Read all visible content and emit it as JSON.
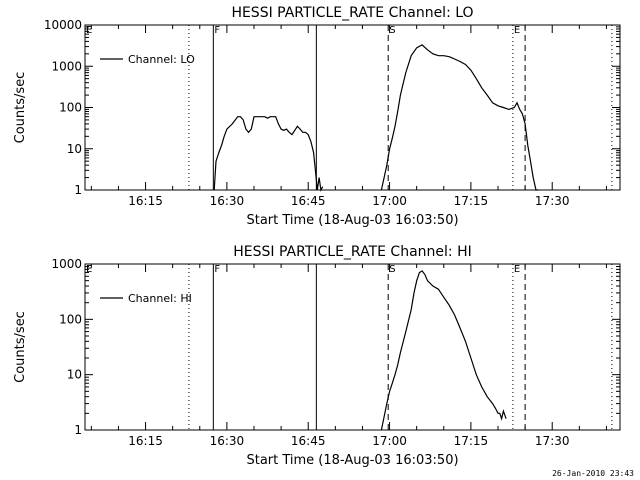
{
  "chart_data": [
    {
      "type": "line",
      "title": "HESSI PARTICLE_RATE Channel: LO",
      "xlabel": "Start Time (18-Aug-03 16:03:50)",
      "ylabel": "Counts/sec",
      "yscale": "log",
      "ylim": [
        1,
        10000
      ],
      "xlim": [
        "16:03:50",
        "17:42:30"
      ],
      "xticks": [
        "16:15",
        "16:30",
        "16:45",
        "17:00",
        "17:15",
        "17:30"
      ],
      "yticks": [
        "1",
        "10",
        "100",
        "1000",
        "10000"
      ],
      "grid": false,
      "legend": {
        "position": "top-left",
        "entries": [
          "Channel: LO"
        ]
      },
      "markers": [
        {
          "time": "16:23:00",
          "style": "dotted",
          "label": ""
        },
        {
          "time": "16:27:30",
          "style": "solid",
          "label": "F"
        },
        {
          "time": "16:46:30",
          "style": "solid",
          "label": ""
        },
        {
          "time": "16:59:45",
          "style": "dashed",
          "label": "S"
        },
        {
          "time": "17:22:45",
          "style": "dotted",
          "label": "E"
        },
        {
          "time": "17:25:00",
          "style": "dashed",
          "label": ""
        },
        {
          "time": "17:41:00",
          "style": "dotted",
          "label": ""
        }
      ],
      "corner_label": "E",
      "series": [
        {
          "name": "Channel: LO",
          "segments": [
            {
              "x": [
                "16:27:40",
                "16:28:00",
                "16:28:30",
                "16:29:00",
                "16:29:30",
                "16:30:00",
                "16:31:00",
                "16:32:00",
                "16:32:30",
                "16:33:00",
                "16:33:30",
                "16:34:00",
                "16:34:30",
                "16:35:00",
                "16:36:00",
                "16:37:00",
                "16:37:30",
                "16:38:00",
                "16:38:30",
                "16:39:00",
                "16:39:30",
                "16:40:00",
                "16:40:30",
                "16:41:00",
                "16:41:30",
                "16:42:00",
                "16:43:00",
                "16:43:30",
                "16:44:00",
                "16:44:30",
                "16:45:00",
                "16:45:30",
                "16:46:00",
                "16:46:20",
                "16:46:40",
                "16:47:00",
                "16:47:20",
                "16:47:40"
              ],
              "y": [
                1,
                5,
                8,
                12,
                20,
                30,
                40,
                60,
                60,
                50,
                30,
                25,
                30,
                60,
                60,
                60,
                55,
                60,
                60,
                60,
                40,
                30,
                28,
                30,
                25,
                22,
                35,
                30,
                25,
                25,
                22,
                15,
                8,
                3,
                1,
                2,
                1,
                1.2
              ]
            },
            {
              "x": [
                "16:58:30",
                "16:59:30",
                "17:00:00",
                "17:00:30",
                "17:01:00",
                "17:01:30",
                "17:02:00",
                "17:03:00",
                "17:04:00",
                "17:05:00",
                "17:06:00",
                "17:07:00",
                "17:08:00",
                "17:09:00",
                "17:10:00",
                "17:11:00",
                "17:12:00",
                "17:13:00",
                "17:14:00",
                "17:15:00",
                "17:16:00",
                "17:17:00",
                "17:18:00",
                "17:19:00",
                "17:20:00",
                "17:21:00",
                "17:22:00",
                "17:23:00",
                "17:23:30",
                "17:24:00",
                "17:24:30",
                "17:25:00",
                "17:25:30",
                "17:26:00",
                "17:26:30",
                "17:27:00",
                "17:27:30"
              ],
              "y": [
                1,
                4,
                10,
                18,
                35,
                80,
                200,
                700,
                1800,
                2800,
                3300,
                2500,
                2000,
                1800,
                1800,
                1700,
                1500,
                1300,
                1100,
                800,
                500,
                300,
                200,
                130,
                110,
                100,
                90,
                100,
                130,
                90,
                70,
                40,
                12,
                5,
                2,
                1,
                1
              ]
            }
          ]
        }
      ]
    },
    {
      "type": "line",
      "title": "HESSI PARTICLE_RATE Channel: HI",
      "xlabel": "Start Time (18-Aug-03 16:03:50)",
      "ylabel": "Counts/sec",
      "yscale": "log",
      "ylim": [
        1,
        1000
      ],
      "xlim": [
        "16:03:50",
        "17:42:30"
      ],
      "xticks": [
        "16:15",
        "16:30",
        "16:45",
        "17:00",
        "17:15",
        "17:30"
      ],
      "yticks": [
        "1",
        "10",
        "100",
        "1000"
      ],
      "grid": false,
      "legend": {
        "position": "top-left",
        "entries": [
          "Channel: HI"
        ]
      },
      "markers": [
        {
          "time": "16:23:00",
          "style": "dotted",
          "label": ""
        },
        {
          "time": "16:27:30",
          "style": "solid",
          "label": "F"
        },
        {
          "time": "16:46:30",
          "style": "solid",
          "label": ""
        },
        {
          "time": "16:59:45",
          "style": "dashed",
          "label": "S"
        },
        {
          "time": "17:22:45",
          "style": "dotted",
          "label": "E"
        },
        {
          "time": "17:25:00",
          "style": "dashed",
          "label": ""
        },
        {
          "time": "17:41:00",
          "style": "dotted",
          "label": ""
        }
      ],
      "corner_label": "E",
      "series": [
        {
          "name": "Channel: HI",
          "segments": [
            {
              "x": [
                "16:58:30",
                "16:59:30",
                "17:00:00",
                "17:00:30",
                "17:01:00",
                "17:01:30",
                "17:02:00",
                "17:03:00",
                "17:04:00",
                "17:04:30",
                "17:05:00",
                "17:05:30",
                "17:06:00",
                "17:06:30",
                "17:07:00",
                "17:08:00",
                "17:09:00",
                "17:10:00",
                "17:11:00",
                "17:12:00",
                "17:13:00",
                "17:14:00",
                "17:15:00",
                "17:16:00",
                "17:17:00",
                "17:18:00",
                "17:19:00",
                "17:19:30",
                "17:20:00",
                "17:20:20",
                "17:20:40",
                "17:21:00",
                "17:21:30"
              ],
              "y": [
                1,
                3,
                5,
                7,
                10,
                15,
                25,
                60,
                150,
                300,
                500,
                700,
                750,
                650,
                500,
                400,
                350,
                250,
                180,
                120,
                70,
                40,
                20,
                10,
                6,
                4,
                3,
                2.5,
                2,
                2,
                1.6,
                2.2,
                1.6
              ]
            }
          ]
        }
      ]
    }
  ],
  "footer": {
    "timestamp": "26-Jan-2010 23:43"
  }
}
